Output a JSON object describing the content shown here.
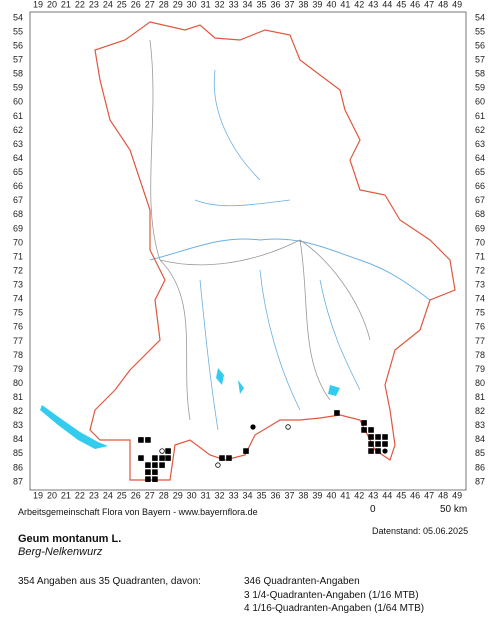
{
  "map": {
    "column_labels": [
      19,
      20,
      21,
      22,
      23,
      24,
      25,
      26,
      27,
      28,
      29,
      30,
      31,
      32,
      33,
      34,
      35,
      36,
      37,
      38,
      39,
      40,
      41,
      42,
      43,
      44,
      45,
      46,
      47,
      48,
      49
    ],
    "row_labels": [
      54,
      55,
      56,
      57,
      58,
      59,
      60,
      61,
      62,
      63,
      64,
      65,
      66,
      67,
      68,
      69,
      70,
      71,
      72,
      73,
      74,
      75,
      76,
      77,
      78,
      79,
      80,
      81,
      82,
      83,
      84,
      85,
      86,
      87
    ],
    "markers": [
      {
        "x": 26.37,
        "y": 84.01,
        "symbol": "square"
      },
      {
        "x": 26.87,
        "y": 84.01,
        "symbol": "square"
      },
      {
        "x": 27.88,
        "y": 84.8,
        "symbol": "circle"
      },
      {
        "x": 28.31,
        "y": 84.8,
        "symbol": "square"
      },
      {
        "x": 26.37,
        "y": 85.3,
        "symbol": "square"
      },
      {
        "x": 27.37,
        "y": 85.3,
        "symbol": "square"
      },
      {
        "x": 27.88,
        "y": 85.3,
        "symbol": "square"
      },
      {
        "x": 28.31,
        "y": 85.3,
        "symbol": "square"
      },
      {
        "x": 26.87,
        "y": 85.8,
        "symbol": "square"
      },
      {
        "x": 27.37,
        "y": 85.8,
        "symbol": "square"
      },
      {
        "x": 27.88,
        "y": 85.8,
        "symbol": "square"
      },
      {
        "x": 26.87,
        "y": 86.3,
        "symbol": "square"
      },
      {
        "x": 27.37,
        "y": 86.3,
        "symbol": "square"
      },
      {
        "x": 26.87,
        "y": 86.8,
        "symbol": "square"
      },
      {
        "x": 27.37,
        "y": 86.8,
        "symbol": "square"
      },
      {
        "x": 31.88,
        "y": 85.8,
        "symbol": "circle"
      },
      {
        "x": 32.17,
        "y": 85.3,
        "symbol": "square"
      },
      {
        "x": 32.67,
        "y": 85.3,
        "symbol": "square"
      },
      {
        "x": 33.89,
        "y": 84.8,
        "symbol": "square"
      },
      {
        "x": 34.39,
        "y": 83.09,
        "symbol": "dot"
      },
      {
        "x": 36.9,
        "y": 83.09,
        "symbol": "circle"
      },
      {
        "x": 40.4,
        "y": 82.09,
        "symbol": "square"
      },
      {
        "x": 42.34,
        "y": 82.8,
        "symbol": "square"
      },
      {
        "x": 42.34,
        "y": 83.3,
        "symbol": "square"
      },
      {
        "x": 42.84,
        "y": 83.3,
        "symbol": "square"
      },
      {
        "x": 42.84,
        "y": 83.8,
        "symbol": "square"
      },
      {
        "x": 43.34,
        "y": 83.8,
        "symbol": "square"
      },
      {
        "x": 43.84,
        "y": 83.8,
        "symbol": "square"
      },
      {
        "x": 42.84,
        "y": 84.3,
        "symbol": "square"
      },
      {
        "x": 43.34,
        "y": 84.3,
        "symbol": "square"
      },
      {
        "x": 43.84,
        "y": 84.3,
        "symbol": "square"
      },
      {
        "x": 42.84,
        "y": 84.8,
        "symbol": "square"
      },
      {
        "x": 43.34,
        "y": 84.8,
        "symbol": "square"
      },
      {
        "x": 43.84,
        "y": 84.8,
        "symbol": "dot"
      }
    ]
  },
  "credit": "Arbeitsgemeinschaft Flora von Bayern - www.bayernflora.de",
  "date": "Datenstand: 05.06.2025",
  "scale": {
    "start": "0",
    "end": "50 km"
  },
  "species": {
    "name": "Geum montanum L.",
    "common_name": "Berg-Nelkenwurz"
  },
  "summary": {
    "total": "354 Angaben aus 35 Quadranten, davon:",
    "lines": [
      "346 Quadranten-Angaben",
      "3 1/4-Quadranten-Angaben (1/16 MTB)",
      "4 1/16-Quadranten-Angaben (1/64 MTB)"
    ]
  }
}
